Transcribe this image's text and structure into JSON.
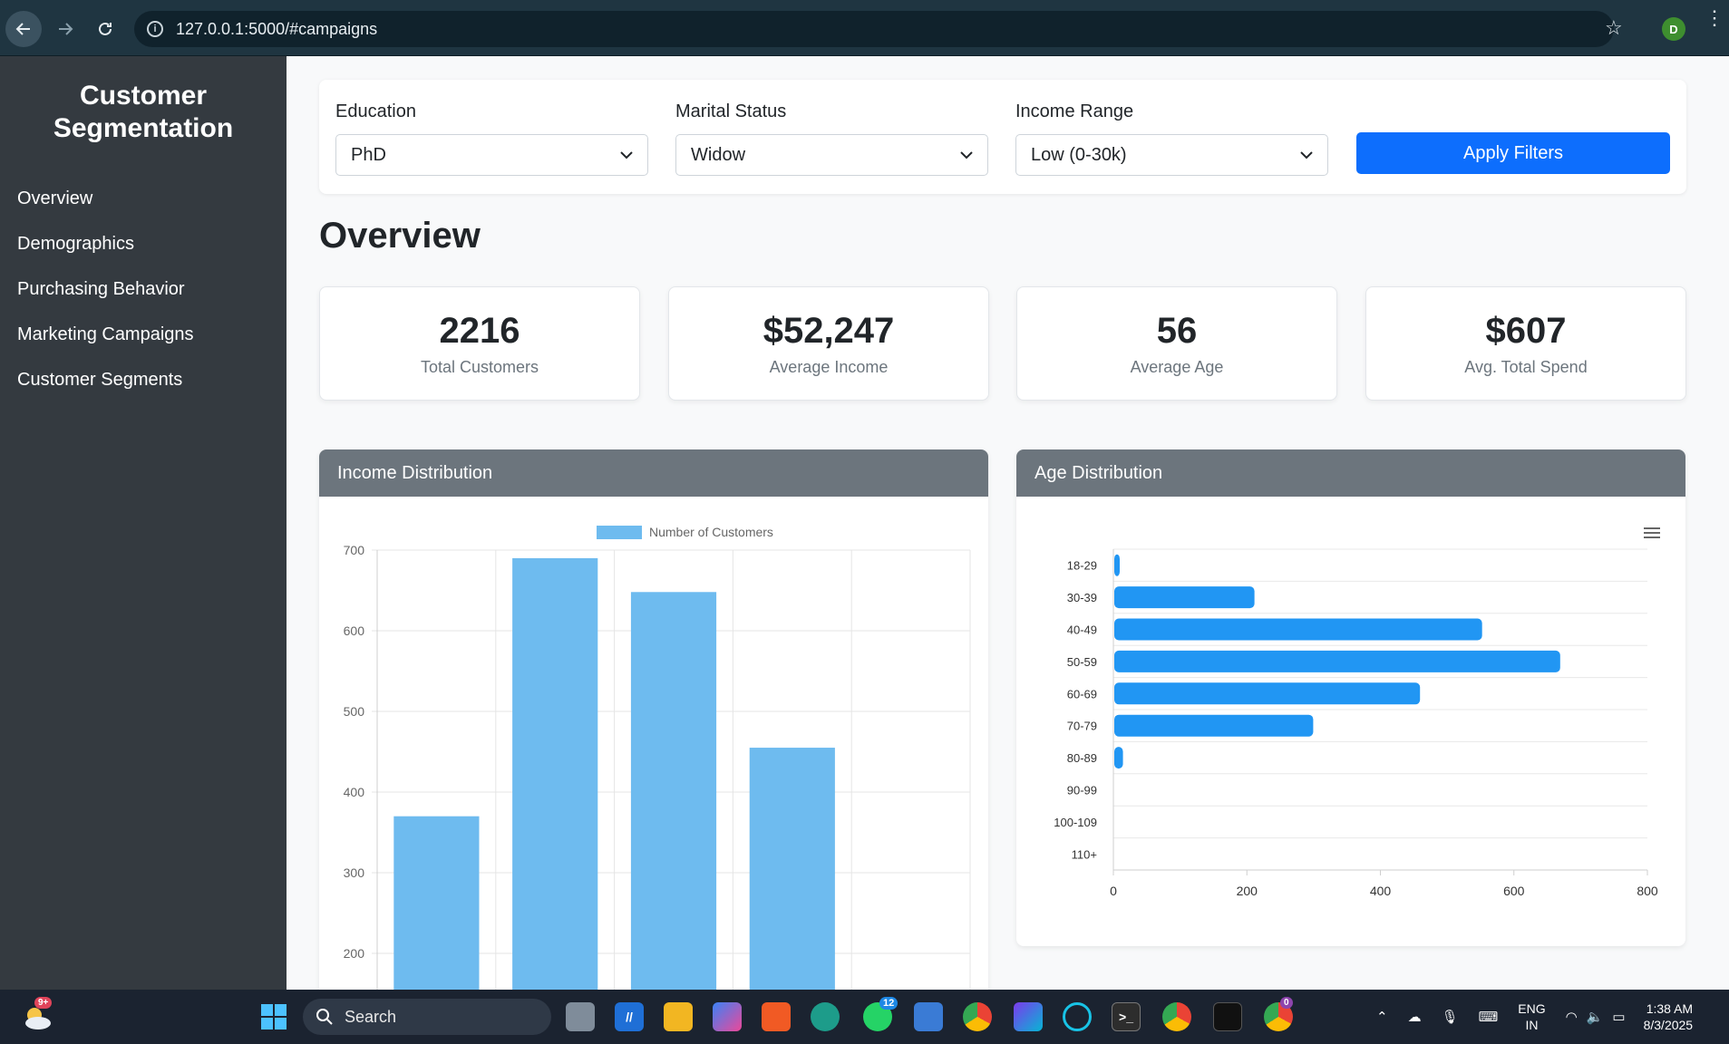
{
  "browser": {
    "url": "127.0.0.1:5000/#campaigns",
    "profile_initial": "D"
  },
  "sidebar": {
    "brand": "Customer Segmentation",
    "items": [
      {
        "label": "Overview"
      },
      {
        "label": "Demographics"
      },
      {
        "label": "Purchasing Behavior"
      },
      {
        "label": "Marketing Campaigns"
      },
      {
        "label": "Customer Segments"
      }
    ]
  },
  "filters": {
    "education": {
      "label": "Education",
      "value": "PhD"
    },
    "marital": {
      "label": "Marital Status",
      "value": "Widow"
    },
    "income": {
      "label": "Income Range",
      "value": "Low (0-30k)"
    },
    "apply_label": "Apply Filters"
  },
  "page_title": "Overview",
  "stats": [
    {
      "value": "2216",
      "label": "Total Customers"
    },
    {
      "value": "$52,247",
      "label": "Average Income"
    },
    {
      "value": "56",
      "label": "Average Age"
    },
    {
      "value": "$607",
      "label": "Avg. Total Spend"
    }
  ],
  "charts": {
    "income_title": "Income Distribution",
    "age_title": "Age Distribution"
  },
  "chart_data": [
    {
      "type": "bar",
      "title": "Income Distribution",
      "series": [
        {
          "name": "Number of Customers",
          "values": [
            370,
            690,
            648,
            455,
            null
          ]
        }
      ],
      "ylim": [
        200,
        700
      ],
      "yticks": [
        700,
        600,
        500,
        400,
        300,
        200
      ],
      "color": "#6ebbef",
      "grid": true,
      "legend": "top"
    },
    {
      "type": "bar",
      "orientation": "horizontal",
      "title": "Age Distribution",
      "categories": [
        "18-29",
        "30-39",
        "40-49",
        "50-59",
        "60-69",
        "70-79",
        "80-89",
        "90-99",
        "100-109",
        "110+"
      ],
      "values": [
        5,
        210,
        551,
        668,
        458,
        298,
        13,
        0,
        0,
        0
      ],
      "xlim": [
        0,
        800
      ],
      "xticks": [
        0,
        200,
        400,
        600,
        800
      ],
      "color": "#2196f3",
      "grid": true
    }
  ],
  "taskbar": {
    "search_placeholder": "Search",
    "weather_badge": "9+",
    "whatsapp_badge": "12",
    "chrome_badge": "0",
    "lang_line1": "ENG",
    "lang_line2": "IN",
    "time": "1:38 AM",
    "date": "8/3/2025"
  }
}
